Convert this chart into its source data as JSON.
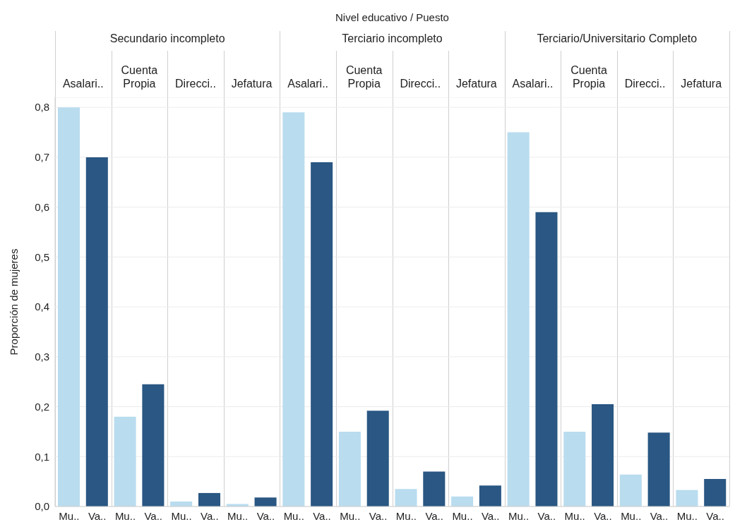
{
  "chart_data": {
    "type": "bar",
    "title": "Nivel educativo  /  Puesto",
    "ylabel": "Proporción de mujeres",
    "categories": [
      "Mu..",
      "Va..",
      "Mu..",
      "Va..",
      "Mu..",
      "Va..",
      "Mu..",
      "Va..",
      "Mu..",
      "Va..",
      "Mu..",
      "Va..",
      "Mu..",
      "Va..",
      "Mu..",
      "Va..",
      "Mu..",
      "Va..",
      "Mu..",
      "Va..",
      "Mu..",
      "Va..",
      "Mu..",
      "Va.."
    ],
    "values": [
      0.8,
      0.7,
      0.18,
      0.245,
      0.01,
      0.027,
      0.005,
      0.018,
      0.79,
      0.69,
      0.15,
      0.192,
      0.035,
      0.07,
      0.02,
      0.042,
      0.75,
      0.59,
      0.15,
      0.205,
      0.064,
      0.148,
      0.033,
      0.055
    ],
    "colors": [
      "#b9dcef",
      "#2a5783",
      "#b9dcef",
      "#2a5783",
      "#b9dcef",
      "#2a5783",
      "#b9dcef",
      "#2a5783",
      "#b9dcef",
      "#2a5783",
      "#b9dcef",
      "#2a5783",
      "#b9dcef",
      "#2a5783",
      "#b9dcef",
      "#2a5783",
      "#b9dcef",
      "#2a5783",
      "#b9dcef",
      "#2a5783",
      "#b9dcef",
      "#2a5783",
      "#b9dcef",
      "#2a5783"
    ],
    "annotations": [
      "Secundario incompleto",
      "Terciario incompleto",
      "Terciario/Universitario Completo",
      "Asalari..",
      "Cuenta Propia",
      "Direcci..",
      "Jefatura",
      "Asalari..",
      "Cuenta Propia",
      "Direcci..",
      "Jefatura",
      "Asalari..",
      "Cuenta Propia",
      "Direcci..",
      "Jefatura"
    ],
    "ylim": [
      0,
      0.82
    ],
    "yticks": [
      {
        "value": 0,
        "label": "0,0"
      },
      {
        "value": 0.1,
        "label": "0,1"
      },
      {
        "value": 0.2,
        "label": "0,2"
      },
      {
        "value": 0.3,
        "label": "0,3"
      },
      {
        "value": 0.4,
        "label": "0,4"
      },
      {
        "value": 0.5,
        "label": "0,5"
      },
      {
        "value": 0.6,
        "label": "0,6"
      },
      {
        "value": 0.7,
        "label": "0,7"
      },
      {
        "value": 0.8,
        "label": "0,8"
      }
    ],
    "grid": "y",
    "legend": false
  }
}
